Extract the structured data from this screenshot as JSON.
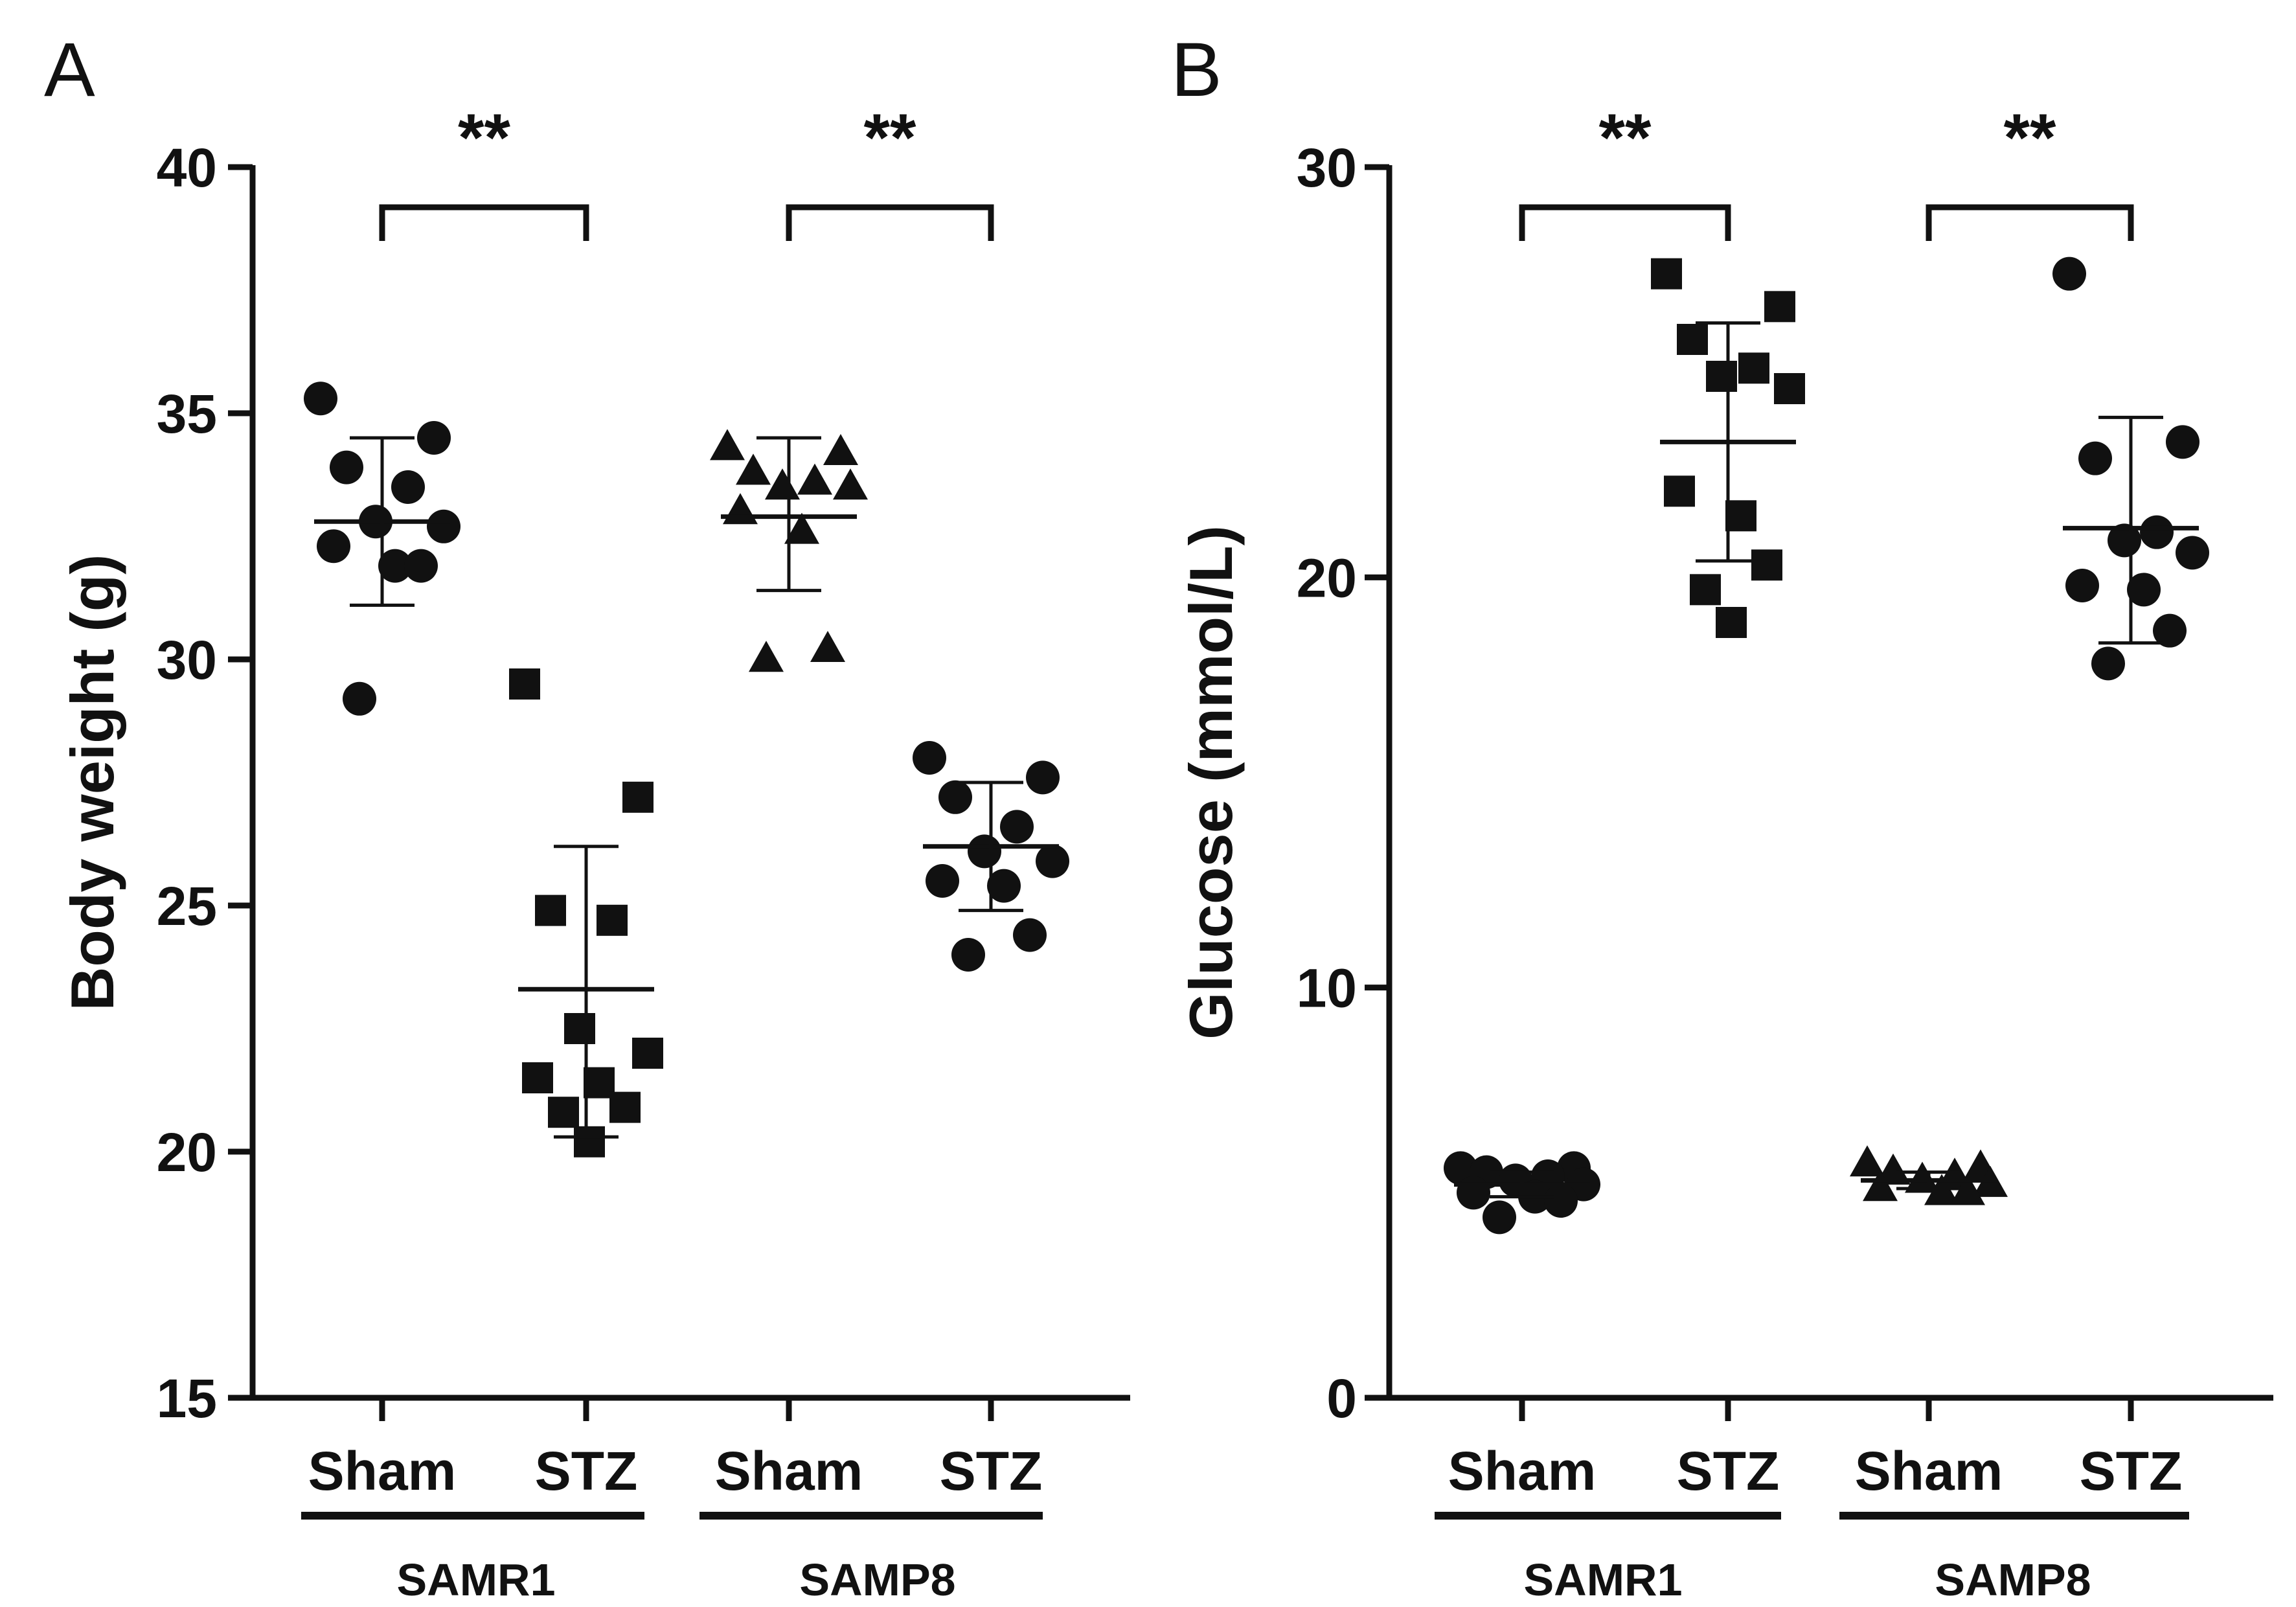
{
  "chart_data": [
    {
      "type": "scatter",
      "panel_label": "A",
      "title": "",
      "ylabel": "Body weight (g)",
      "ylim": [
        15,
        40
      ],
      "yticks": [
        15,
        20,
        25,
        30,
        35,
        40
      ],
      "yticks_text": [
        "15",
        "20",
        "25",
        "30",
        "35",
        "40"
      ],
      "categories": [
        "Sham",
        "STZ",
        "Sham",
        "STZ"
      ],
      "groups": [
        {
          "name": "SAMR1",
          "categories": [
            0,
            1
          ]
        },
        {
          "name": "SAMP8",
          "categories": [
            2,
            3
          ]
        }
      ],
      "series": [
        {
          "name": "SAMR1 Sham",
          "category": 0,
          "marker": "circle",
          "values": [
            35.3,
            34.5,
            33.9,
            33.5,
            32.8,
            32.7,
            32.3,
            31.9,
            31.9,
            29.2
          ],
          "mean": 32.8,
          "sd_low": 31.1,
          "sd_high": 34.5
        },
        {
          "name": "SAMR1 STZ",
          "category": 1,
          "marker": "square",
          "values": [
            29.5,
            27.2,
            24.9,
            24.7,
            22.5,
            22.0,
            21.5,
            21.4,
            20.9,
            20.8,
            20.2
          ],
          "mean": 23.3,
          "sd_low": 20.3,
          "sd_high": 26.2
        },
        {
          "name": "SAMP8 Sham",
          "category": 2,
          "marker": "triangle",
          "values": [
            34.3,
            34.2,
            33.8,
            33.6,
            33.5,
            33.5,
            33.0,
            32.6,
            30.2,
            30.0
          ],
          "mean": 32.9,
          "sd_low": 31.4,
          "sd_high": 34.5
        },
        {
          "name": "SAMP8 STZ",
          "category": 3,
          "marker": "circle",
          "values": [
            28.0,
            27.6,
            27.2,
            26.6,
            26.1,
            25.9,
            25.5,
            25.4,
            24.4,
            24.0
          ],
          "mean": 26.2,
          "sd_low": 24.9,
          "sd_high": 27.5
        }
      ],
      "significance": [
        {
          "from": 0,
          "to": 1,
          "label": "**"
        },
        {
          "from": 2,
          "to": 3,
          "label": "**"
        }
      ]
    },
    {
      "type": "scatter",
      "panel_label": "B",
      "title": "",
      "ylabel": "Glucose (mmol/L)",
      "ylim": [
        0,
        30
      ],
      "yticks": [
        0,
        10,
        20,
        30
      ],
      "yticks_text": [
        "0",
        "10",
        "20",
        "30"
      ],
      "categories": [
        "Sham",
        "STZ",
        "Sham",
        "STZ"
      ],
      "groups": [
        {
          "name": "SAMR1",
          "categories": [
            0,
            1
          ]
        },
        {
          "name": "SAMP8",
          "categories": [
            2,
            3
          ]
        }
      ],
      "series": [
        {
          "name": "SAMR1 Sham",
          "category": 0,
          "marker": "circle",
          "values": [
            5.6,
            5.6,
            5.5,
            5.4,
            5.3,
            5.2,
            5.0,
            4.9,
            4.8,
            4.4
          ],
          "mean": 5.2,
          "sd_low": 4.9,
          "sd_high": 5.5
        },
        {
          "name": "SAMR1 STZ",
          "category": 1,
          "marker": "square",
          "values": [
            27.4,
            26.6,
            25.8,
            25.1,
            24.9,
            24.6,
            22.1,
            21.5,
            20.3,
            19.7,
            18.9
          ],
          "mean": 23.3,
          "sd_low": 20.4,
          "sd_high": 26.2
        },
        {
          "name": "SAMP8 Sham",
          "category": 2,
          "marker": "triangle",
          "values": [
            5.7,
            5.6,
            5.5,
            5.4,
            5.3,
            5.2,
            5.1,
            5.0,
            5.0
          ],
          "mean": 5.3,
          "sd_low": 5.1,
          "sd_high": 5.5
        },
        {
          "name": "SAMP8 STZ",
          "category": 3,
          "marker": "circle",
          "values": [
            27.4,
            23.3,
            22.9,
            21.1,
            20.9,
            20.6,
            19.8,
            19.7,
            18.7,
            17.9
          ],
          "mean": 21.2,
          "sd_low": 18.4,
          "sd_high": 23.9
        },
        {
          "name": "_",
          "category": 3,
          "marker": "none",
          "values": [],
          "mean": null,
          "sd_low": null,
          "sd_high": null
        }
      ],
      "significance": [
        {
          "from": 0,
          "to": 1,
          "label": "**"
        },
        {
          "from": 2,
          "to": 3,
          "label": "**"
        }
      ]
    }
  ],
  "colors": {
    "ink": "#111111",
    "background": "#ffffff"
  }
}
